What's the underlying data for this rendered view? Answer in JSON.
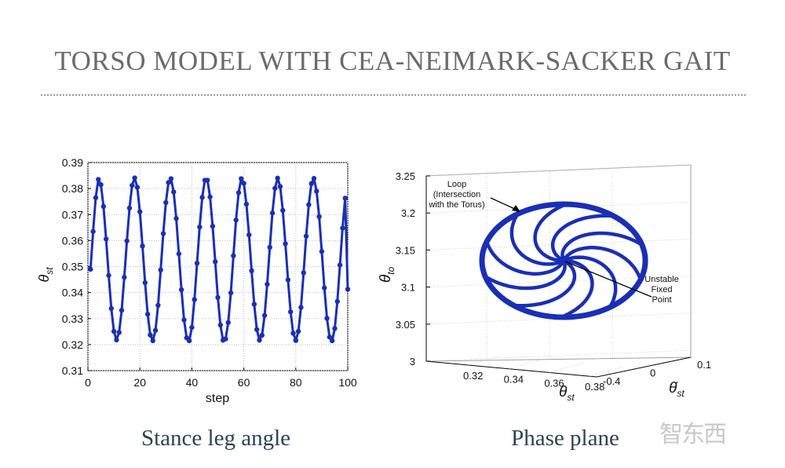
{
  "slide": {
    "title": "TORSO MODEL WITH CEA-NEIMARK-SACKER GAIT",
    "caption_left": "Stance leg angle",
    "caption_right": "Phase plane",
    "watermark": "智东西"
  },
  "chart_data": [
    {
      "type": "line",
      "marker": "circle",
      "color": "#1a2fb5",
      "xlabel": "step",
      "ylabel": "θst",
      "xlim": [
        0,
        100
      ],
      "ylim": [
        0.31,
        0.39
      ],
      "xticks": [
        0,
        20,
        40,
        60,
        80,
        100
      ],
      "yticks": [
        0.31,
        0.32,
        0.33,
        0.34,
        0.35,
        0.36,
        0.37,
        0.38,
        0.39
      ],
      "grid": true,
      "x": [
        1,
        2,
        3,
        4,
        5,
        6,
        7,
        8,
        9,
        10,
        11,
        12,
        13,
        14,
        15,
        16,
        17,
        18,
        19,
        20,
        21,
        22,
        23,
        24,
        25,
        26,
        27,
        28,
        29,
        30,
        31,
        32,
        33,
        34,
        35,
        36,
        37,
        38,
        39,
        40,
        41,
        42,
        43,
        44,
        45,
        46,
        47,
        48,
        49,
        50,
        51,
        52,
        53,
        54,
        55,
        56,
        57,
        58,
        59,
        60,
        61,
        62,
        63,
        64,
        65,
        66,
        67,
        68,
        69,
        70,
        71,
        72,
        73,
        74,
        75,
        76,
        77,
        78,
        79,
        80,
        81,
        82,
        83,
        84,
        85,
        86,
        87,
        88,
        89,
        90,
        91,
        92,
        93,
        94,
        95,
        96,
        97,
        98,
        99,
        100
      ],
      "values": [
        0.349,
        0.3635,
        0.3765,
        0.3835,
        0.3815,
        0.3731,
        0.3606,
        0.3466,
        0.3339,
        0.3251,
        0.3218,
        0.3247,
        0.3332,
        0.3459,
        0.3599,
        0.3725,
        0.3812,
        0.3841,
        0.3805,
        0.3711,
        0.3579,
        0.3438,
        0.3317,
        0.3237,
        0.3215,
        0.3255,
        0.3351,
        0.3487,
        0.3627,
        0.3746,
        0.3823,
        0.3838,
        0.3787,
        0.3685,
        0.3549,
        0.3411,
        0.3295,
        0.3226,
        0.3215,
        0.3266,
        0.3373,
        0.3513,
        0.3652,
        0.3766,
        0.3832,
        0.3832,
        0.3768,
        0.3655,
        0.3519,
        0.3381,
        0.3275,
        0.3217,
        0.3222,
        0.3285,
        0.3399,
        0.3542,
        0.3679,
        0.3784,
        0.3838,
        0.382,
        0.374,
        0.3622,
        0.3484,
        0.3355,
        0.3258,
        0.3217,
        0.3236,
        0.3312,
        0.3432,
        0.3574,
        0.3706,
        0.3801,
        0.384,
        0.3808,
        0.3716,
        0.3588,
        0.3449,
        0.3326,
        0.3244,
        0.3216,
        0.3251,
        0.3343,
        0.3476,
        0.3617,
        0.3738,
        0.3819,
        0.3839,
        0.379,
        0.3692,
        0.3558,
        0.3418,
        0.3301,
        0.3229,
        0.3215,
        0.3262,
        0.3366,
        0.3506,
        0.3648,
        0.3763,
        0.3413
      ]
    },
    {
      "type": "scatter",
      "dimensions": 3,
      "color": "#1a2fb5",
      "xlabel": "θst",
      "ylabel": "θ̇st",
      "zlabel": "θto",
      "xticks": [
        0.32,
        0.34,
        0.36,
        0.38
      ],
      "yticks": [
        0.1,
        0,
        -0.4
      ],
      "zticks": [
        3,
        3.05,
        3.1,
        3.15,
        3.2,
        3.25
      ],
      "zlim": [
        3,
        3.25
      ],
      "grid": true,
      "loop_radius": 1,
      "spiral_arms": 10,
      "annotations": [
        {
          "text": "Loop\n(Intersection\nwith the Torus)",
          "target": "loop"
        },
        {
          "text": "Unstable\nFixed\nPoint",
          "target": "center"
        }
      ]
    }
  ]
}
